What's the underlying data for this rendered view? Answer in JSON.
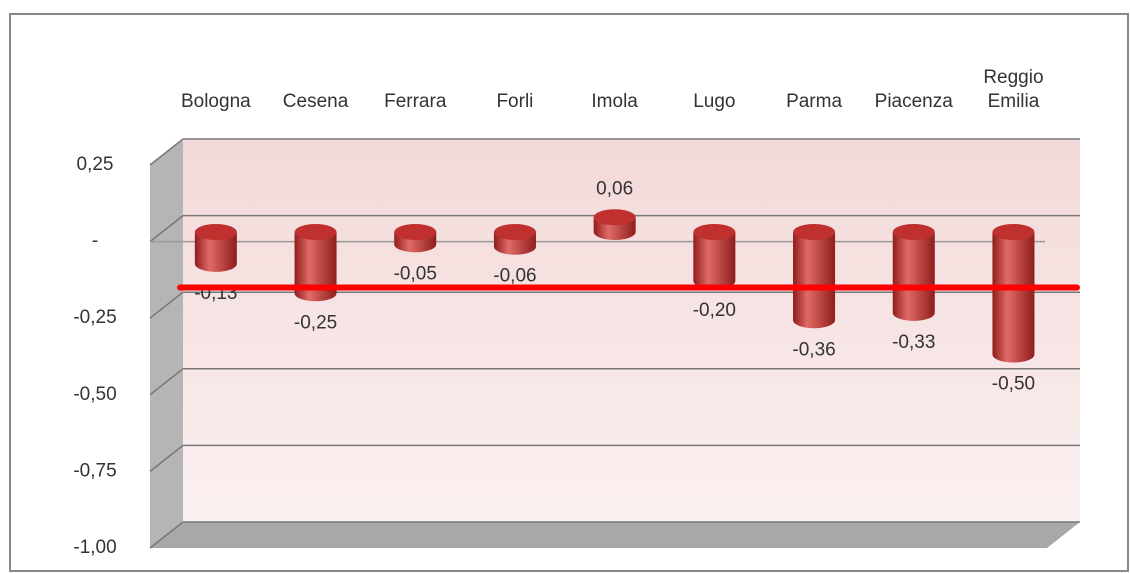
{
  "chart_data": {
    "type": "bar",
    "categories": [
      "Bologna",
      "Cesena",
      "Ferrara",
      "Forli",
      "Imola",
      "Lugo",
      "Parma",
      "Piacenza",
      "Reggio Emilia"
    ],
    "values": [
      -0.13,
      -0.25,
      -0.05,
      -0.06,
      0.06,
      -0.2,
      -0.36,
      -0.33,
      -0.5
    ],
    "value_labels": [
      "-0,13",
      "-0,25",
      "-0,05",
      "-0,06",
      "0,06",
      "-0,20",
      "-0,36",
      "-0,33",
      "-0,50"
    ],
    "color": "#c0302e",
    "ylim": [
      -1,
      0.25
    ],
    "yticks": [
      {
        "value": 0.25,
        "label": "0,25"
      },
      {
        "value": 0,
        "label": "-"
      },
      {
        "value": -0.25,
        "label": "-0,25"
      },
      {
        "value": -0.5,
        "label": "-0,50"
      },
      {
        "value": -0.75,
        "label": "-0,75"
      },
      {
        "value": -1,
        "label": "-1,00"
      }
    ],
    "grid": true,
    "reference_line": {
      "value": -0.15,
      "color": "#ff0000"
    }
  }
}
